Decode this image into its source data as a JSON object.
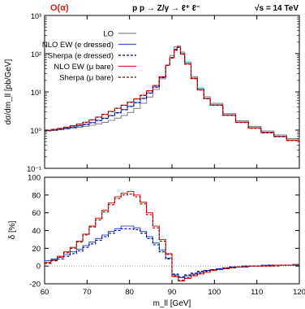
{
  "chart_data": [
    {
      "type": "line",
      "title": "p p → Z/γ → ℓ⁺ ℓ⁻",
      "order_label": "O(α)",
      "energy_label": "√s = 14 TeV",
      "xlabel": "",
      "ylabel": "dσ/dm_ll [pb/GeV]",
      "yscale": "log",
      "xlim": [
        60,
        120
      ],
      "ylim": [
        0.1,
        1000
      ],
      "yticks": [
        "10⁻¹",
        "10⁰",
        "10¹",
        "10²",
        "10³"
      ],
      "legend_position": "top-left",
      "series": [
        {
          "name": "LO",
          "color": "#888888",
          "style": "solid"
        },
        {
          "name": "NLO EW (e dressed)",
          "color": "#3a5fcd",
          "style": "solid"
        },
        {
          "name": "Sherpa (e dressed)",
          "color": "#00008b",
          "style": "dashed"
        },
        {
          "name": "NLO EW (μ bare)",
          "color": "#dd2222",
          "style": "solid"
        },
        {
          "name": "Sherpa (μ bare)",
          "color": "#8b0000",
          "style": "dashed"
        }
      ],
      "x": [
        60,
        61.5,
        63,
        64.5,
        66,
        67.5,
        69,
        70.5,
        72,
        73.5,
        75,
        76.5,
        78,
        79.5,
        81,
        82.5,
        84,
        85.5,
        87,
        88.5,
        89.5,
        90.5,
        91.2,
        92,
        93,
        94.5,
        96,
        97.5,
        99,
        102,
        105,
        108,
        111,
        114,
        117,
        120
      ],
      "lo": [
        0.95,
        0.98,
        1.02,
        1.07,
        1.12,
        1.18,
        1.25,
        1.34,
        1.45,
        1.6,
        1.8,
        2.05,
        2.4,
        2.9,
        3.7,
        5.0,
        7.3,
        11.5,
        22,
        50,
        90,
        150,
        160,
        110,
        60,
        25,
        12.5,
        7.5,
        5.0,
        2.7,
        1.75,
        1.25,
        0.95,
        0.75,
        0.6,
        0.48
      ],
      "nlo_e": [
        0.98,
        1.02,
        1.07,
        1.13,
        1.2,
        1.3,
        1.42,
        1.58,
        1.8,
        2.05,
        2.4,
        2.85,
        3.45,
        4.2,
        5.3,
        6.8,
        9.4,
        13.5,
        24,
        50,
        80,
        130,
        150,
        100,
        55,
        23,
        11.5,
        6.8,
        4.6,
        2.5,
        1.62,
        1.15,
        0.88,
        0.69,
        0.55,
        0.44
      ],
      "nlo_mu": [
        0.99,
        1.05,
        1.11,
        1.2,
        1.3,
        1.44,
        1.62,
        1.86,
        2.2,
        2.6,
        3.1,
        3.75,
        4.5,
        5.4,
        6.6,
        8.2,
        10.7,
        14.8,
        25,
        50,
        78,
        125,
        147,
        98,
        54,
        22.5,
        11.3,
        6.7,
        4.5,
        2.45,
        1.6,
        1.13,
        0.86,
        0.68,
        0.54,
        0.43
      ]
    },
    {
      "type": "line",
      "xlabel": "m_ll [GeV]",
      "ylabel": "δ [%]",
      "xlim": [
        60,
        120
      ],
      "ylim": [
        -20,
        100
      ],
      "xticks": [
        60,
        70,
        80,
        90,
        100,
        110,
        120
      ],
      "yticks": [
        -20,
        0,
        20,
        40,
        60,
        80,
        100
      ],
      "grid": false,
      "reference_line_y": 0,
      "x_edges": [
        60,
        61.5,
        63,
        64.5,
        66,
        67.5,
        69,
        70.5,
        72,
        73.5,
        75,
        76.5,
        78,
        79.5,
        81,
        82.5,
        84,
        85.5,
        87,
        88.5,
        90,
        91.5,
        93,
        94.5,
        96,
        97.5,
        99,
        100.5,
        102,
        103.5,
        105,
        106.5,
        108,
        109.5,
        111,
        112.5,
        114,
        115.5,
        117,
        118.5,
        120
      ],
      "series": [
        {
          "name": "NLO EW (e dressed)",
          "color": "#3a5fcd",
          "style": "solid",
          "values": [
            6,
            8,
            10,
            13,
            16,
            19,
            23,
            27,
            31,
            35,
            39,
            42,
            45,
            45,
            43,
            39,
            33,
            26,
            18,
            9,
            -10,
            -13,
            -11,
            -9,
            -7,
            -5,
            -4,
            -3,
            -2,
            -1,
            -1,
            0,
            0,
            0,
            1,
            1,
            1,
            1,
            1,
            2
          ]
        },
        {
          "name": "Sherpa (e dressed)",
          "color": "#00008b",
          "style": "dashed",
          "values": [
            4,
            6,
            8,
            11,
            14,
            17,
            21,
            25,
            29,
            33,
            37,
            40,
            42,
            42,
            41,
            37,
            31,
            24,
            16,
            8,
            -9,
            -12,
            -10,
            -8,
            -6,
            -5,
            -4,
            -3,
            -2,
            -1,
            -1,
            0,
            0,
            0,
            0,
            1,
            1,
            1,
            1,
            1
          ]
        },
        {
          "name": "NLO EW (μ bare)",
          "color": "#dd2222",
          "style": "solid",
          "values": [
            4,
            7,
            11,
            16,
            21,
            28,
            36,
            45,
            54,
            63,
            71,
            78,
            82,
            84,
            80,
            72,
            60,
            45,
            30,
            14,
            -12,
            -17,
            -14,
            -11,
            -9,
            -7,
            -5,
            -4,
            -3,
            -2,
            -1,
            -1,
            0,
            0,
            0,
            0,
            1,
            1,
            1,
            1
          ]
        },
        {
          "name": "Sherpa (μ bare)",
          "color": "#8b0000",
          "style": "dashed",
          "values": [
            3,
            6,
            10,
            15,
            20,
            27,
            35,
            44,
            52,
            61,
            69,
            76,
            80,
            81,
            78,
            70,
            58,
            43,
            28,
            13,
            -11,
            -16,
            -13,
            -10,
            -8,
            -6,
            -5,
            -4,
            -3,
            -2,
            -1,
            -1,
            0,
            0,
            0,
            0,
            0,
            1,
            1,
            1
          ]
        }
      ]
    }
  ]
}
